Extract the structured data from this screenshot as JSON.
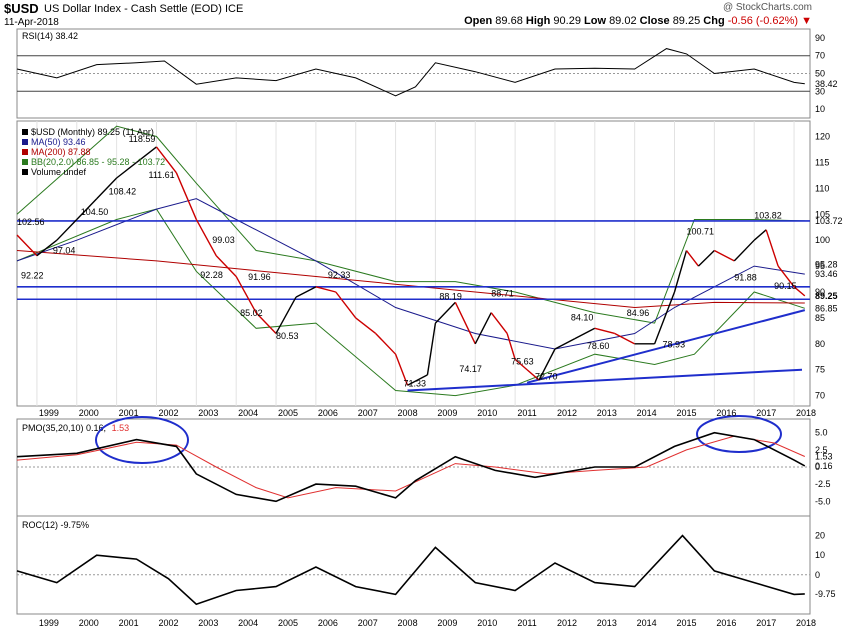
{
  "header": {
    "symbol": "$USD",
    "name": "US Dollar Index - Cash Settle (EOD)",
    "exchange": "ICE",
    "date": "11-Apr-2018",
    "credit": "@ StockCharts.com",
    "open_label": "Open",
    "open": "89.68",
    "high_label": "High",
    "high": "90.29",
    "low_label": "Low",
    "low": "89.02",
    "close_label": "Close",
    "close": "89.25",
    "chg_label": "Chg",
    "chg": "-0.56 (-0.62%)"
  },
  "colors": {
    "price_up": "#000000",
    "price_down": "#cc0000",
    "ma50": "#1a1a8c",
    "ma200": "#b00000",
    "bb": "#2b7a1f",
    "trendline": "#1f2ecc",
    "pmo": "#000000",
    "pmo_signal": "#e03030",
    "rsi_over": "#3f8f3f",
    "rsi_under": "#8f5f5f"
  },
  "x_axis": {
    "years": [
      "1999",
      "2000",
      "2001",
      "2002",
      "2003",
      "2004",
      "2005",
      "2006",
      "2007",
      "2008",
      "2009",
      "2010",
      "2011",
      "2012",
      "2013",
      "2014",
      "2015",
      "2016",
      "2017",
      "2018"
    ]
  },
  "rsi_panel": {
    "legend": "RSI(14) 38.42",
    "ticks": [
      "90",
      "70",
      "50",
      "30",
      "10"
    ],
    "current": "38.42"
  },
  "price_panel": {
    "legend": [
      {
        "text": "$USD (Monthly) 89.25 (11 Apr)",
        "color": "#000000"
      },
      {
        "text": "MA(50) 93.46",
        "color": "#1a1a8c"
      },
      {
        "text": "MA(200) 87.88",
        "color": "#b00000"
      },
      {
        "text": "BB(20,2.0) 86.85 - 95.28 - 103.72",
        "color": "#2b7a1f"
      },
      {
        "text": "Volume undef",
        "color": "#000000"
      }
    ],
    "ticks": [
      "120",
      "115",
      "110",
      "105",
      "100",
      "95",
      "90",
      "85",
      "80",
      "75",
      "70"
    ],
    "right_labels": [
      "103.72",
      "95.28",
      "93.46",
      "89.25",
      "86.85"
    ],
    "annotations": [
      "102.56",
      "104.50",
      "118.59",
      "108.42",
      "111.61",
      "97.04",
      "92.22",
      "99.03",
      "92.28",
      "91.96",
      "85.02",
      "80.53",
      "92.33",
      "88.19",
      "88.71",
      "84.10",
      "84.96",
      "74.17",
      "75.63",
      "72.70",
      "78.60",
      "78.93",
      "71.33",
      "100.71",
      "103.82",
      "91.88",
      "90.15"
    ]
  },
  "pmo_panel": {
    "legend_prefix": "PMO(35,20,10) 0.16,",
    "legend_signal": "1.53",
    "ticks": [
      "5.0",
      "2.5",
      "0",
      "-2.5",
      "-5.0"
    ],
    "right_labels": [
      "1.53",
      "0.16"
    ]
  },
  "roc_panel": {
    "legend": "ROC(12) -9.75%",
    "ticks": [
      "20",
      "10",
      "0"
    ],
    "current": "-9.75"
  },
  "chart_data": {
    "type": "line",
    "title": "$USD US Dollar Index - Cash Settle (EOD)",
    "price_series": {
      "name": "$USD (Monthly)",
      "x": [
        1998.5,
        1999.0,
        1999.5,
        2000.0,
        2000.5,
        2001.0,
        2001.5,
        2002.0,
        2002.5,
        2003.0,
        2003.5,
        2004.0,
        2004.5,
        2005.0,
        2005.5,
        2006.0,
        2006.5,
        2007.0,
        2007.5,
        2008.0,
        2008.3,
        2008.8,
        2009.0,
        2009.5,
        2010.0,
        2010.4,
        2010.8,
        2011.0,
        2011.3,
        2011.6,
        2012.0,
        2012.5,
        2013.0,
        2013.5,
        2014.0,
        2014.5,
        2015.0,
        2015.3,
        2015.6,
        2016.0,
        2016.5,
        2017.0,
        2017.3,
        2017.6,
        2018.0,
        2018.27
      ],
      "y": [
        101,
        97,
        100,
        104,
        108,
        112,
        115,
        118,
        113,
        104,
        97,
        93,
        86,
        82,
        89,
        91,
        90,
        85,
        82,
        78,
        72,
        74,
        84,
        88,
        80,
        86,
        82,
        77,
        75,
        73,
        79,
        81,
        83,
        82,
        80,
        80,
        90,
        98,
        95,
        98,
        96,
        100,
        102,
        95,
        91,
        89.25
      ],
      "ylim": [
        68,
        123
      ]
    },
    "ma50": {
      "x": [
        1998.5,
        2000,
        2002,
        2003,
        2004,
        2006,
        2008,
        2010,
        2012,
        2014,
        2015,
        2016,
        2017,
        2018.27
      ],
      "y": [
        96,
        100,
        106,
        108,
        104,
        96,
        87,
        82,
        79,
        82,
        87,
        91,
        95,
        93.46
      ]
    },
    "ma200": {
      "x": [
        1998.5,
        2002,
        2006,
        2010,
        2014,
        2016,
        2018.27
      ],
      "y": [
        98,
        96,
        93,
        90,
        87,
        88,
        87.88
      ]
    },
    "bb_upper": {
      "x": [
        1998.5,
        2001,
        2002,
        2003,
        2004.5,
        2006,
        2008,
        2009.5,
        2011,
        2013,
        2014.5,
        2015.5,
        2017,
        2018.27
      ],
      "y": [
        105,
        122,
        120,
        111,
        98,
        96,
        92,
        92,
        90,
        86,
        84,
        104,
        104,
        103.72
      ]
    },
    "bb_lower": {
      "x": [
        1998.5,
        2001,
        2002,
        2003,
        2004.5,
        2006,
        2008,
        2009.5,
        2011,
        2013,
        2014.5,
        2015.5,
        2017,
        2018.27
      ],
      "y": [
        96,
        104,
        106,
        94,
        83,
        84,
        71,
        70,
        72,
        78,
        76,
        78,
        90,
        86.85
      ]
    },
    "horizontal_lines": [
      103.72,
      91.0,
      88.6
    ],
    "trendlines": [
      {
        "x": [
          2008.3,
          2018.2
        ],
        "y": [
          71,
          75
        ]
      },
      {
        "x": [
          2011.3,
          2018.27
        ],
        "y": [
          72.5,
          86.5
        ]
      }
    ],
    "rsi": {
      "x": [
        1998.5,
        1999.5,
        2000.5,
        2001.5,
        2002.2,
        2003,
        2004,
        2005,
        2006,
        2007,
        2008,
        2008.5,
        2009,
        2010,
        2011,
        2012,
        2013,
        2014,
        2014.8,
        2015.3,
        2016,
        2017,
        2018,
        2018.27
      ],
      "y": [
        55,
        45,
        60,
        62,
        64,
        38,
        45,
        42,
        55,
        45,
        25,
        35,
        62,
        52,
        40,
        55,
        56,
        55,
        78,
        72,
        50,
        55,
        40,
        38.42
      ],
      "ylim": [
        0,
        100
      ]
    },
    "pmo": {
      "x": [
        1998.5,
        2000,
        2001.5,
        2002.5,
        2003,
        2004,
        2005,
        2006,
        2007,
        2008,
        2008.5,
        2009.5,
        2010.5,
        2011.5,
        2012,
        2013,
        2014,
        2015,
        2016,
        2017,
        2018,
        2018.27
      ],
      "y": [
        1.5,
        2.0,
        4.0,
        3.0,
        -1,
        -4,
        -5,
        -2.5,
        -2.8,
        -4.5,
        -2,
        1.5,
        -0.5,
        -1.5,
        -1,
        0,
        0,
        3,
        5,
        4,
        1,
        0.16
      ],
      "ylim": [
        -7,
        7
      ]
    },
    "pmo_signal": {
      "x": [
        1998.5,
        2000,
        2001.5,
        2002.5,
        2003.5,
        2004.5,
        2005.3,
        2006.5,
        2008,
        2009.5,
        2010.5,
        2011.8,
        2013,
        2014.3,
        2015.3,
        2016.5,
        2017.5,
        2018.27
      ],
      "y": [
        1.0,
        1.8,
        3.6,
        3.2,
        0,
        -3,
        -4.5,
        -3,
        -3.5,
        0.5,
        0,
        -1,
        -0.5,
        0,
        2.5,
        4.5,
        3.5,
        1.53
      ]
    },
    "roc": {
      "x": [
        1998.5,
        1999.5,
        2000.5,
        2001.5,
        2002.3,
        2003,
        2004,
        2005,
        2006,
        2007,
        2008,
        2009,
        2010,
        2011,
        2012,
        2013,
        2014,
        2015.2,
        2016,
        2017,
        2018,
        2018.27
      ],
      "y": [
        2,
        -4,
        10,
        8,
        -2,
        -15,
        -8,
        -6,
        4,
        -6,
        -10,
        14,
        -4,
        -8,
        6,
        -4,
        -6,
        20,
        2,
        -4,
        -10,
        -9.75
      ],
      "ylim": [
        -20,
        30
      ]
    }
  }
}
